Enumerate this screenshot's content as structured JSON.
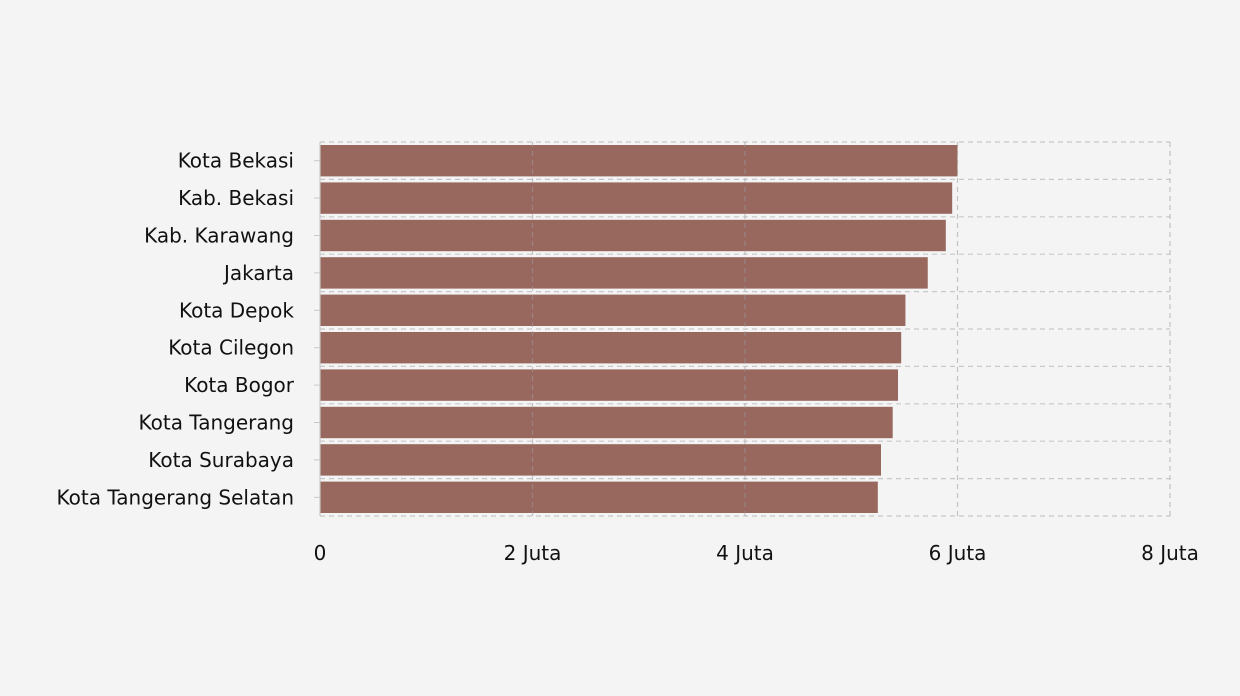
{
  "chart_data": {
    "type": "bar",
    "orientation": "horizontal",
    "categories": [
      "Kota Bekasi",
      "Kab. Bekasi",
      "Kab. Karawang",
      "Jakarta",
      "Kota Depok",
      "Kota Cilegon",
      "Kota Bogor",
      "Kota Tangerang",
      "Kota Surabaya",
      "Kota Tangerang Selatan"
    ],
    "values": [
      6000000,
      5950000,
      5890000,
      5720000,
      5510000,
      5470000,
      5440000,
      5390000,
      5280000,
      5250000
    ],
    "xlim": [
      0,
      8000000
    ],
    "x_ticks": [
      0,
      2000000,
      4000000,
      6000000,
      8000000
    ],
    "x_tick_labels": [
      "0",
      "2 Juta",
      "4 Juta",
      "6 Juta",
      "8 Juta"
    ],
    "title": "",
    "xlabel": "",
    "ylabel": "",
    "grid": true,
    "bar_color": "#98685f",
    "grid_color": "#c8c8c8",
    "background": "#f4f4f4"
  }
}
